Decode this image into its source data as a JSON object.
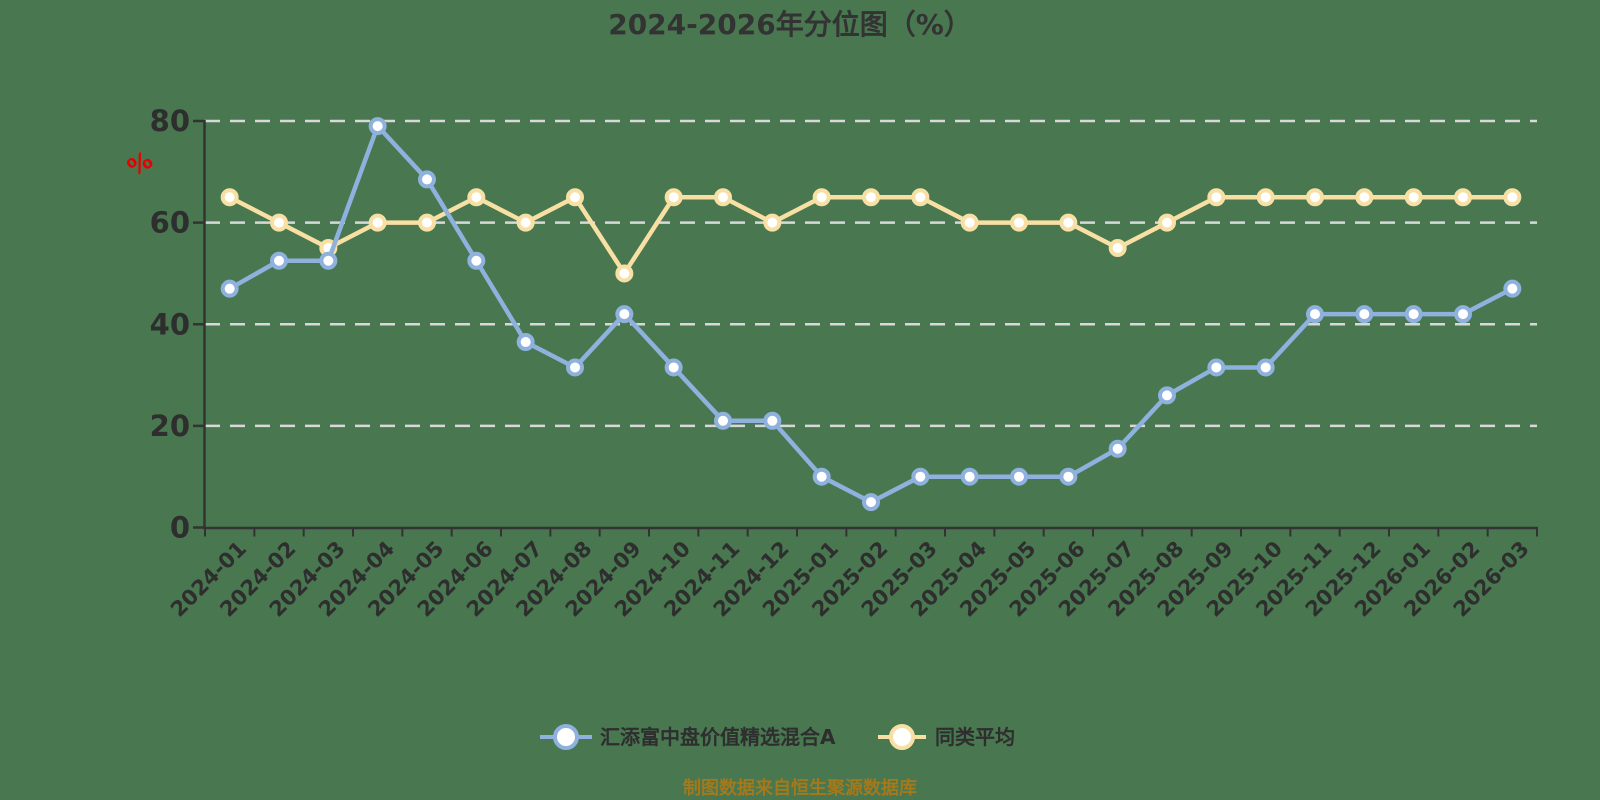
{
  "chart_data": {
    "type": "line",
    "title": "2024-2026年分位图（%）",
    "y_unit": "%",
    "categories": [
      "2024-01",
      "2024-02",
      "2024-03",
      "2024-04",
      "2024-05",
      "2024-06",
      "2024-07",
      "2024-08",
      "2024-09",
      "2024-10",
      "2024-11",
      "2024-12",
      "2025-01",
      "2025-02",
      "2025-03",
      "2025-04",
      "2025-05",
      "2025-06",
      "2025-07",
      "2025-08",
      "2025-09",
      "2025-10",
      "2025-11",
      "2025-12",
      "2026-01",
      "2026-02",
      "2026-03"
    ],
    "series": [
      {
        "name": "汇添富中盘价值精选混合A",
        "color": "#8FB1DE",
        "values": [
          47,
          52.5,
          52.5,
          79,
          68.5,
          52.5,
          36.5,
          31.5,
          42,
          31.5,
          21,
          21,
          10,
          5,
          10,
          10,
          10,
          10,
          15.5,
          26,
          31.5,
          31.5,
          42,
          42,
          42,
          42,
          47
        ]
      },
      {
        "name": "同类平均",
        "color": "#F8E0A4",
        "values": [
          65,
          60,
          55,
          60,
          60,
          65,
          60,
          65,
          50,
          65,
          65,
          60,
          65,
          65,
          65,
          60,
          60,
          60,
          55,
          60,
          65,
          65,
          65,
          65,
          65,
          65,
          65
        ]
      }
    ],
    "ylim": [
      0,
      80
    ],
    "y_ticks": [
      0,
      20,
      40,
      60,
      80
    ],
    "grid": "horizontal-dashed",
    "legend_position": "bottom",
    "colors": {
      "background": "#487750",
      "axis": "#333333",
      "gridline": "#D8D8D8",
      "text": "#2E2E2E",
      "marker_fill": "#FFFFFF",
      "y_unit": "#E60000",
      "source_note": "#A3791B"
    }
  },
  "footer": {
    "source_note": "制图数据来自恒生聚源数据库"
  }
}
